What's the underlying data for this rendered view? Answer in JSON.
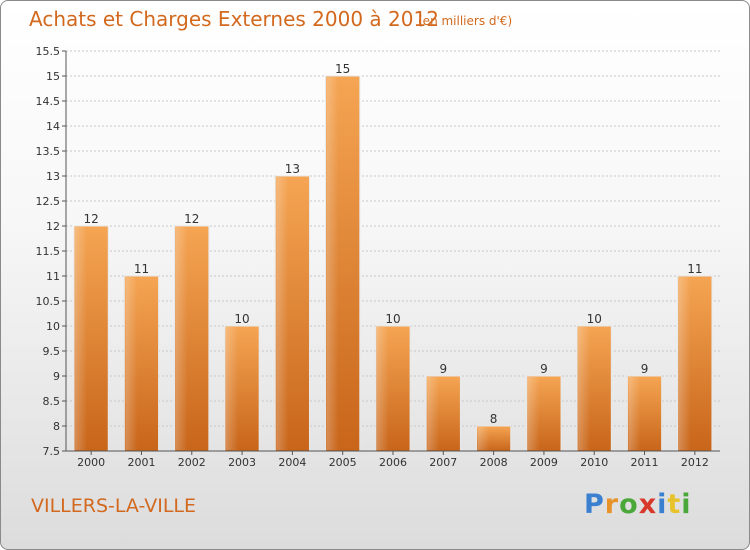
{
  "chart_data": {
    "type": "bar",
    "title": "Achats et Charges Externes 2000 à 2012",
    "subtitle": "(en milliers d'€)",
    "categories": [
      "2000",
      "2001",
      "2002",
      "2003",
      "2004",
      "2005",
      "2006",
      "2007",
      "2008",
      "2009",
      "2010",
      "2011",
      "2012"
    ],
    "values": [
      12,
      11,
      12,
      10,
      13,
      15,
      10,
      9,
      8,
      9,
      10,
      9,
      11
    ],
    "ylim": [
      7.5,
      15.5
    ],
    "yticks": [
      "7.5",
      "8",
      "8.5",
      "9",
      "9.5",
      "10",
      "10.5",
      "11",
      "11.5",
      "12",
      "12.5",
      "13",
      "13.5",
      "14",
      "14.5",
      "15",
      "15.5"
    ],
    "grid": true,
    "bar_color_top": "#f5a553",
    "bar_color_bottom": "#c8651a"
  },
  "footer": {
    "location": "VILLERS-LA-VILLE",
    "logo_letters": [
      {
        "ch": "P",
        "color": "#3a7fd0"
      },
      {
        "ch": "r",
        "color": "#e8922a"
      },
      {
        "ch": "o",
        "color": "#4aa83a"
      },
      {
        "ch": "x",
        "color": "#d8382a"
      },
      {
        "ch": "i",
        "color": "#3a7fd0"
      },
      {
        "ch": "t",
        "color": "#e8c22a"
      },
      {
        "ch": "i",
        "color": "#4aa83a"
      }
    ]
  }
}
